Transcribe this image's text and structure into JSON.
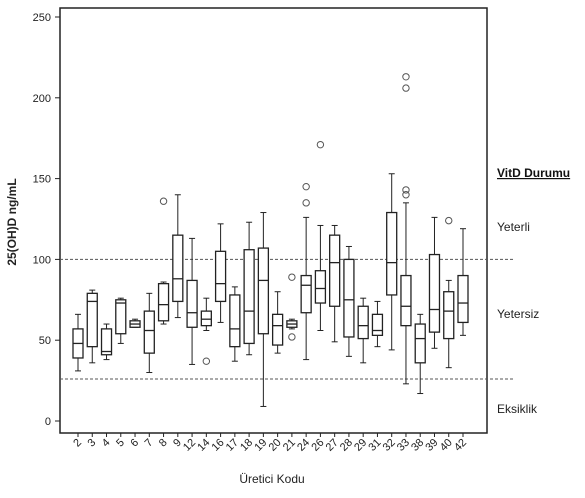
{
  "chart_data": {
    "type": "box",
    "xlabel": "Üretici Kodu",
    "ylabel": "25(OH)D ng/mL",
    "ylim": [
      0,
      250
    ],
    "yticks": [
      0,
      50,
      100,
      150,
      200,
      250
    ],
    "grid": false,
    "reference_lines": [
      {
        "y": 100,
        "style": "dashed"
      },
      {
        "y": 26,
        "style": "dashed"
      }
    ],
    "legend_title": "VitD Durumu",
    "zone_labels": [
      "Yeterli",
      "Yetersiz",
      "Eksiklik"
    ],
    "boxes": [
      {
        "category": "2",
        "whisker_low": 31,
        "q1": 39,
        "median": 48,
        "q3": 57,
        "whisker_high": 66,
        "outliers": []
      },
      {
        "category": "3",
        "whisker_low": 36,
        "q1": 46,
        "median": 74,
        "q3": 79,
        "whisker_high": 81,
        "outliers": []
      },
      {
        "category": "4",
        "whisker_low": 38,
        "q1": 41,
        "median": 43,
        "q3": 57,
        "whisker_high": 60,
        "outliers": []
      },
      {
        "category": "5",
        "whisker_low": 48,
        "q1": 54,
        "median": 73,
        "q3": 75,
        "whisker_high": 76,
        "outliers": []
      },
      {
        "category": "6",
        "whisker_low": 58,
        "q1": 58,
        "median": 60,
        "q3": 62,
        "whisker_high": 63,
        "outliers": []
      },
      {
        "category": "7",
        "whisker_low": 30,
        "q1": 42,
        "median": 56,
        "q3": 68,
        "whisker_high": 79,
        "outliers": []
      },
      {
        "category": "8",
        "whisker_low": 60,
        "q1": 62,
        "median": 72,
        "q3": 85,
        "whisker_high": 86,
        "outliers": [
          136
        ]
      },
      {
        "category": "9",
        "whisker_low": 64,
        "q1": 74,
        "median": 88,
        "q3": 115,
        "whisker_high": 140,
        "outliers": []
      },
      {
        "category": "12",
        "whisker_low": 35,
        "q1": 58,
        "median": 67,
        "q3": 87,
        "whisker_high": 113,
        "outliers": []
      },
      {
        "category": "14",
        "whisker_low": 56,
        "q1": 59,
        "median": 63,
        "q3": 68,
        "whisker_high": 76,
        "outliers": [
          37
        ]
      },
      {
        "category": "16",
        "whisker_low": 61,
        "q1": 74,
        "median": 85,
        "q3": 105,
        "whisker_high": 122,
        "outliers": []
      },
      {
        "category": "17",
        "whisker_low": 37,
        "q1": 46,
        "median": 57,
        "q3": 78,
        "whisker_high": 83,
        "outliers": []
      },
      {
        "category": "18",
        "whisker_low": 41,
        "q1": 48,
        "median": 68,
        "q3": 106,
        "whisker_high": 123,
        "outliers": []
      },
      {
        "category": "19",
        "whisker_low": 9,
        "q1": 54,
        "median": 87,
        "q3": 107,
        "whisker_high": 129,
        "outliers": []
      },
      {
        "category": "20",
        "whisker_low": 42,
        "q1": 47,
        "median": 59,
        "q3": 66,
        "whisker_high": 80,
        "outliers": []
      },
      {
        "category": "21",
        "whisker_low": 57,
        "q1": 58,
        "median": 60,
        "q3": 62,
        "whisker_high": 63,
        "outliers": [
          89,
          52
        ]
      },
      {
        "category": "24",
        "whisker_low": 38,
        "q1": 67,
        "median": 84,
        "q3": 90,
        "whisker_high": 126,
        "outliers": [
          145,
          135
        ]
      },
      {
        "category": "26",
        "whisker_low": 56,
        "q1": 73,
        "median": 82,
        "q3": 93,
        "whisker_high": 121,
        "outliers": [
          171
        ]
      },
      {
        "category": "27",
        "whisker_low": 49,
        "q1": 71,
        "median": 98,
        "q3": 115,
        "whisker_high": 121,
        "outliers": []
      },
      {
        "category": "28",
        "whisker_low": 40,
        "q1": 52,
        "median": 75,
        "q3": 100,
        "whisker_high": 108,
        "outliers": []
      },
      {
        "category": "29",
        "whisker_low": 36,
        "q1": 51,
        "median": 59,
        "q3": 71,
        "whisker_high": 76,
        "outliers": []
      },
      {
        "category": "31",
        "whisker_low": 46,
        "q1": 53,
        "median": 56,
        "q3": 66,
        "whisker_high": 74,
        "outliers": []
      },
      {
        "category": "32",
        "whisker_low": 44,
        "q1": 78,
        "median": 98,
        "q3": 129,
        "whisker_high": 153,
        "outliers": []
      },
      {
        "category": "33",
        "whisker_low": 23,
        "q1": 59,
        "median": 71,
        "q3": 90,
        "whisker_high": 135,
        "outliers": [
          213,
          206,
          143,
          140
        ]
      },
      {
        "category": "38",
        "whisker_low": 17,
        "q1": 36,
        "median": 51,
        "q3": 60,
        "whisker_high": 66,
        "outliers": []
      },
      {
        "category": "39",
        "whisker_low": 45,
        "q1": 55,
        "median": 69,
        "q3": 103,
        "whisker_high": 126,
        "outliers": []
      },
      {
        "category": "40",
        "whisker_low": 33,
        "q1": 51,
        "median": 68,
        "q3": 80,
        "whisker_high": 87,
        "outliers": [
          124
        ]
      },
      {
        "category": "42",
        "whisker_low": 53,
        "q1": 61,
        "median": 73,
        "q3": 90,
        "whisker_high": 119,
        "outliers": []
      }
    ]
  }
}
